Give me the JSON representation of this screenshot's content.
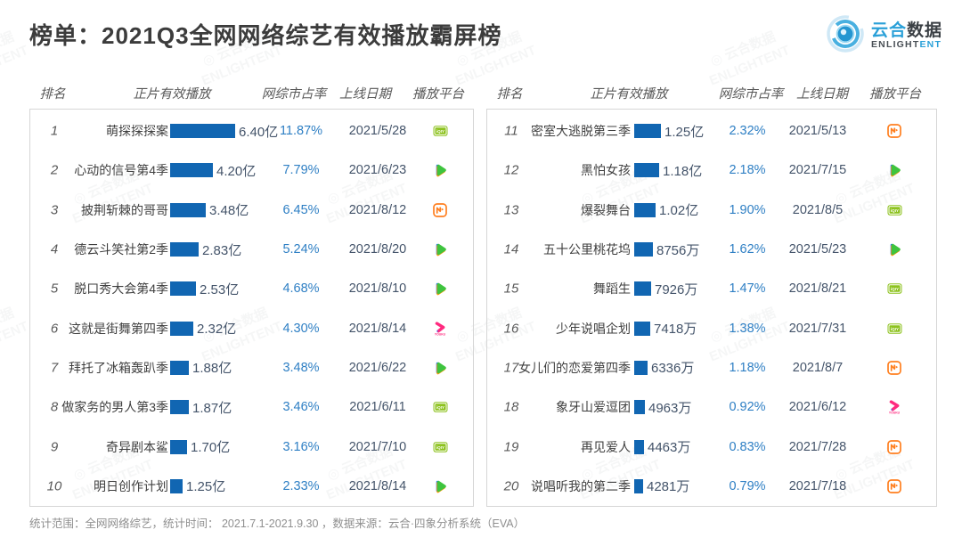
{
  "title": "榜单：2021Q3全网网络综艺有效播放霸屏榜",
  "logo": {
    "cn_blue": "云合",
    "cn_dark": "数据",
    "en_main": "ENLIGHT",
    "en_accent": "ENT"
  },
  "watermark": {
    "text_cn": "云合数据",
    "text_en": "ENLIGHTENT"
  },
  "columns": [
    "排名",
    "正片有效播放",
    "网综市占率",
    "上线日期",
    "播放平台"
  ],
  "footer": "统计范围：全网网络综艺，统计时间： 2021.7.1-2021.9.30 ，数据来源：云合·四象分析系统（EVA）",
  "colors": {
    "bar_blue": "#1166b2",
    "percent_blue": "#2e7fc4",
    "logo_blue": "#2aa0d8",
    "iqiyi_green": "#8dc21f",
    "tencent_green": "#3ec43e",
    "mango_orange": "#ff7f1f",
    "youku_pink": "#ff2a7f"
  },
  "chart_data": {
    "type": "bar",
    "title": "榜单：2021Q3全网网络综艺有效播放霸屏榜",
    "orientation": "horizontal",
    "value_unit": "万 (effective playback volume; 亿 = 10000万)",
    "panels": [
      {
        "rows": [
          {
            "rank": 1,
            "name": "萌探探探案",
            "value_label": "6.40亿",
            "value_wan": 64000,
            "share": "11.87%",
            "date": "2021/5/28",
            "platform": "iqiyi"
          },
          {
            "rank": 2,
            "name": "心动的信号第4季",
            "value_label": "4.20亿",
            "value_wan": 42000,
            "share": "7.79%",
            "date": "2021/6/23",
            "platform": "tencent"
          },
          {
            "rank": 3,
            "name": "披荆斩棘的哥哥",
            "value_label": "3.48亿",
            "value_wan": 34800,
            "share": "6.45%",
            "date": "2021/8/12",
            "platform": "mango"
          },
          {
            "rank": 4,
            "name": "德云斗笑社第2季",
            "value_label": "2.83亿",
            "value_wan": 28300,
            "share": "5.24%",
            "date": "2021/8/20",
            "platform": "tencent"
          },
          {
            "rank": 5,
            "name": "脱口秀大会第4季",
            "value_label": "2.53亿",
            "value_wan": 25300,
            "share": "4.68%",
            "date": "2021/8/10",
            "platform": "tencent"
          },
          {
            "rank": 6,
            "name": "这就是街舞第四季",
            "value_label": "2.32亿",
            "value_wan": 23200,
            "share": "4.30%",
            "date": "2021/8/14",
            "platform": "youku"
          },
          {
            "rank": 7,
            "name": "拜托了冰箱轰趴季",
            "value_label": "1.88亿",
            "value_wan": 18800,
            "share": "3.48%",
            "date": "2021/6/22",
            "platform": "tencent"
          },
          {
            "rank": 8,
            "name": "做家务的男人第3季",
            "value_label": "1.87亿",
            "value_wan": 18700,
            "share": "3.46%",
            "date": "2021/6/11",
            "platform": "iqiyi"
          },
          {
            "rank": 9,
            "name": "奇异剧本鲨",
            "value_label": "1.70亿",
            "value_wan": 17000,
            "share": "3.16%",
            "date": "2021/7/10",
            "platform": "iqiyi"
          },
          {
            "rank": 10,
            "name": "明日创作计划",
            "value_label": "1.25亿",
            "value_wan": 12500,
            "share": "2.33%",
            "date": "2021/8/14",
            "platform": "tencent"
          }
        ]
      },
      {
        "rows": [
          {
            "rank": 11,
            "name": "密室大逃脱第三季",
            "value_label": "1.25亿",
            "value_wan": 12500,
            "share": "2.32%",
            "date": "2021/5/13",
            "platform": "mango"
          },
          {
            "rank": 12,
            "name": "黑怕女孩",
            "value_label": "1.18亿",
            "value_wan": 11800,
            "share": "2.18%",
            "date": "2021/7/15",
            "platform": "tencent"
          },
          {
            "rank": 13,
            "name": "爆裂舞台",
            "value_label": "1.02亿",
            "value_wan": 10200,
            "share": "1.90%",
            "date": "2021/8/5",
            "platform": "iqiyi"
          },
          {
            "rank": 14,
            "name": "五十公里桃花坞",
            "value_label": "8756万",
            "value_wan": 8756,
            "share": "1.62%",
            "date": "2021/5/23",
            "platform": "tencent"
          },
          {
            "rank": 15,
            "name": "舞蹈生",
            "value_label": "7926万",
            "value_wan": 7926,
            "share": "1.47%",
            "date": "2021/8/21",
            "platform": "iqiyi"
          },
          {
            "rank": 16,
            "name": "少年说唱企划",
            "value_label": "7418万",
            "value_wan": 7418,
            "share": "1.38%",
            "date": "2021/7/31",
            "platform": "iqiyi"
          },
          {
            "rank": 17,
            "name": "女儿们的恋爱第四季",
            "value_label": "6336万",
            "value_wan": 6336,
            "share": "1.18%",
            "date": "2021/8/7",
            "platform": "mango"
          },
          {
            "rank": 18,
            "name": "象牙山爱逗团",
            "value_label": "4963万",
            "value_wan": 4963,
            "share": "0.92%",
            "date": "2021/6/12",
            "platform": "youku"
          },
          {
            "rank": 19,
            "name": "再见爱人",
            "value_label": "4463万",
            "value_wan": 4463,
            "share": "0.83%",
            "date": "2021/7/28",
            "platform": "mango"
          },
          {
            "rank": 20,
            "name": "说唱听我的第二季",
            "value_label": "4281万",
            "value_wan": 4281,
            "share": "0.79%",
            "date": "2021/7/18",
            "platform": "mango"
          }
        ]
      }
    ]
  }
}
